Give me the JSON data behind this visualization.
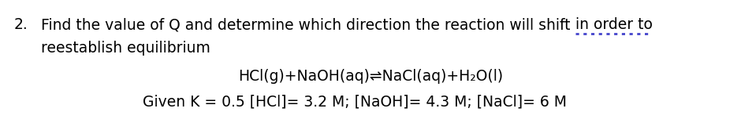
{
  "background_color": "#ffffff",
  "text_color": "#000000",
  "fig_width": 9.4,
  "fig_height": 1.66,
  "dpi": 100,
  "number_label": "2.",
  "line1_main": "Find the value of Q and determine which direction the reaction will shift ",
  "line1_underlined": "in order to",
  "line2": "reestablish equilibrium",
  "equation": "HCl(g)+NaOH(aq)⇌NaCl(aq)+H₂O(l)",
  "given_line": "Given K = 0.5 [HCl]= 3.2 M; [NaOH]= 4.3 M; [NaCl]= 6 M",
  "font_size": 13.5,
  "dotted_underline_color": "#4444cc",
  "dotted_underline_lw": 2.0
}
